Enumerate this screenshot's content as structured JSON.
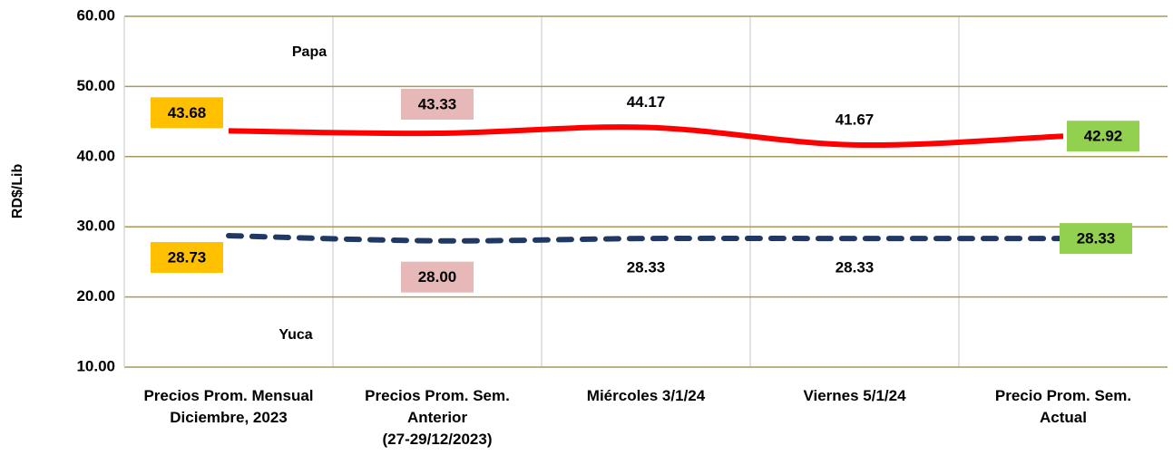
{
  "chart_data": {
    "type": "line",
    "y_label": "RD$/Lib",
    "categories": [
      "Precios Prom. Mensual\nDiciembre, 2023",
      "Precios Prom. Sem.\nAnterior\n(27-29/12/2023)",
      "Miércoles 3/1/24",
      "Viernes 5/1/24",
      "Precio Prom. Sem.\nActual"
    ],
    "series": [
      {
        "name": "Papa",
        "color": "#ff0000",
        "dashed": false,
        "values": [
          43.68,
          43.33,
          44.17,
          41.67,
          42.92
        ],
        "value_labels": [
          "43.68",
          "43.33",
          "44.17",
          "41.67",
          "42.92"
        ]
      },
      {
        "name": "Yuca",
        "color": "#1f3864",
        "dashed": true,
        "values": [
          28.73,
          28.0,
          28.33,
          28.33,
          28.33
        ],
        "value_labels": [
          "28.73",
          "28.00",
          "28.33",
          "28.33",
          "28.33"
        ]
      }
    ],
    "label_backgrounds": [
      "#ffc000",
      "#e6b8b7",
      null,
      null,
      "#92d050"
    ],
    "ylim": [
      10,
      60
    ],
    "yticks": [
      {
        "value": 10,
        "label": "10.00"
      },
      {
        "value": 20,
        "label": "20.00"
      },
      {
        "value": 30,
        "label": "30.00"
      },
      {
        "value": 40,
        "label": "40.00"
      },
      {
        "value": 50,
        "label": "50.00"
      },
      {
        "value": 60,
        "label": "60.00"
      }
    ],
    "grid": true
  }
}
